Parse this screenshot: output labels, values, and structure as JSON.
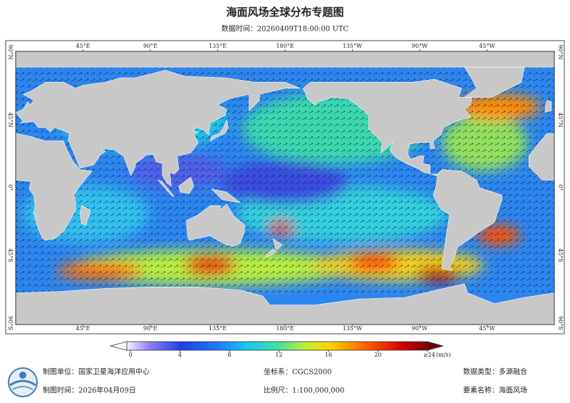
{
  "header": {
    "title": "海面风场全球分布专题图",
    "data_time": "数据时间：20260409T18:00:00 UTC"
  },
  "map": {
    "top_labels": [
      "45°E",
      "90°E",
      "135°E",
      "180°E",
      "135°W",
      "90°W",
      "45°W"
    ],
    "bottom_labels": [
      "45°E",
      "90°E",
      "135°E",
      "180°E",
      "135°W",
      "90°W",
      "45°W"
    ],
    "left_labels": [
      "90°N",
      "45°N",
      "0°",
      "45°S",
      "90°S"
    ],
    "right_labels": [
      "90°N",
      "45°N",
      "0°",
      "45°S",
      "90°S"
    ]
  },
  "colorbar": {
    "ticks": [
      0,
      4,
      8,
      12,
      16,
      20
    ],
    "range": [
      0,
      24
    ],
    "max_label": "≥24",
    "unit": "(m/s)"
  },
  "footer": {
    "producer": "制图单位：国家卫星海洋应用中心",
    "date": "制图时间：2026年04月09日",
    "crs": "坐标系：CGCS2000",
    "scale": "比例尺：1:100,000,000",
    "data_type": "数据类型：多源融合",
    "element": "要素名称：海面风场"
  }
}
